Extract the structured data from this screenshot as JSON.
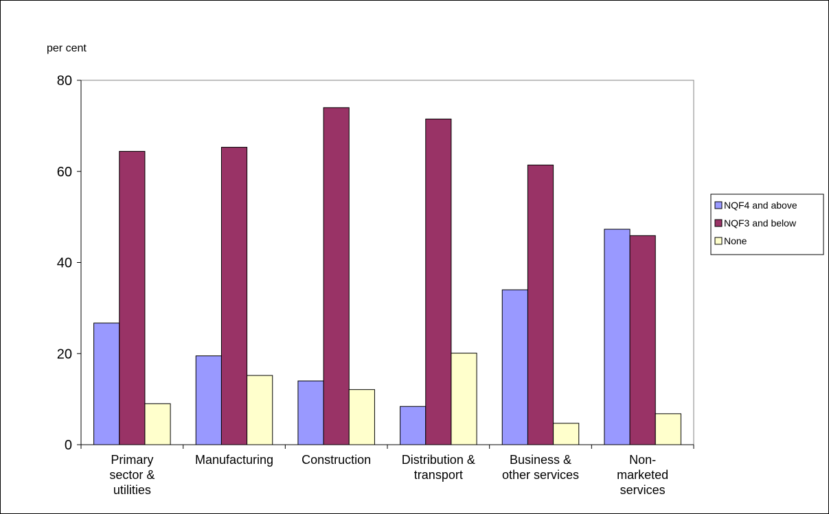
{
  "chart_data": {
    "type": "bar",
    "title": "",
    "ylabel": "per cent",
    "xlabel": "",
    "ylim": [
      0,
      80
    ],
    "yticks": [
      0,
      20,
      40,
      60,
      80
    ],
    "grid": false,
    "legend_position": "right",
    "categories": [
      [
        "Primary",
        "sector &",
        "utilities"
      ],
      [
        "Manufacturing"
      ],
      [
        "Construction"
      ],
      [
        "Distribution &",
        "transport"
      ],
      [
        "Business &",
        "other services"
      ],
      [
        "Non-",
        "marketed",
        "services"
      ]
    ],
    "series": [
      {
        "name": "NQF4 and above",
        "color": "#9999ff",
        "values": [
          26.7,
          19.5,
          14.0,
          8.4,
          34.0,
          47.3
        ]
      },
      {
        "name": "NQF3 and below",
        "color": "#993366",
        "values": [
          64.4,
          65.3,
          74.0,
          71.5,
          61.4,
          45.9
        ]
      },
      {
        "name": "None",
        "color": "#ffffcc",
        "values": [
          9.0,
          15.2,
          12.1,
          20.1,
          4.7,
          6.8
        ]
      }
    ]
  }
}
